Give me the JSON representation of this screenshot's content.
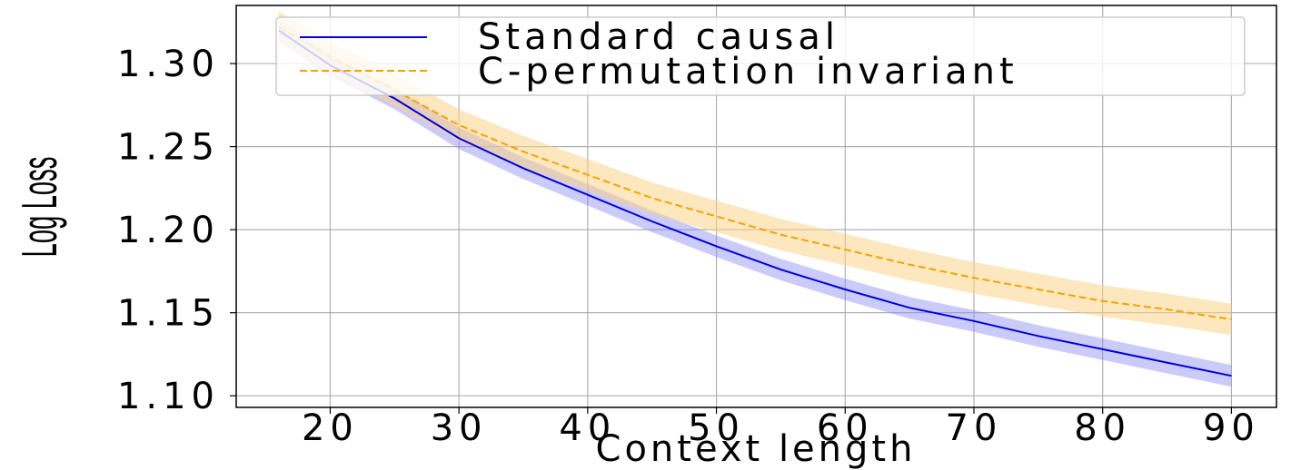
{
  "chart_data": {
    "type": "line",
    "title": "",
    "xlabel": "Context length",
    "ylabel": "Log Loss",
    "xlim": [
      12.7,
      93.5
    ],
    "ylim": [
      1.093,
      1.335
    ],
    "xticks": [
      20,
      30,
      40,
      50,
      60,
      70,
      80,
      90
    ],
    "xtick_labels": [
      "20",
      "30",
      "40",
      "50",
      "60",
      "70",
      "80",
      "90"
    ],
    "yticks": [
      1.1,
      1.15,
      1.2,
      1.25,
      1.3
    ],
    "ytick_labels": [
      "1.10",
      "1.15",
      "1.20",
      "1.25",
      "1.30"
    ],
    "grid": true,
    "legend_position": "top-right",
    "x": [
      16,
      20,
      25,
      30,
      35,
      40,
      45,
      50,
      55,
      60,
      65,
      70,
      75,
      80,
      85,
      90
    ],
    "series": [
      {
        "name": "Standard causal",
        "color": "#0000dd",
        "band_color": "#8c8cf2",
        "linestyle": "solid",
        "values": [
          1.32,
          1.299,
          1.279,
          1.255,
          1.237,
          1.221,
          1.205,
          1.19,
          1.176,
          1.164,
          1.153,
          1.145,
          1.136,
          1.128,
          1.12,
          1.112
        ],
        "band_halfwidth": 0.0065
      },
      {
        "name": "C-permutation invariant",
        "color": "#f5a300",
        "band_color": "#fcd48a",
        "linestyle": "dashed",
        "values": [
          1.322,
          1.304,
          1.284,
          1.263,
          1.247,
          1.233,
          1.219,
          1.208,
          1.197,
          1.188,
          1.179,
          1.171,
          1.164,
          1.157,
          1.152,
          1.146
        ],
        "band_halfwidth": 0.0095
      }
    ]
  }
}
